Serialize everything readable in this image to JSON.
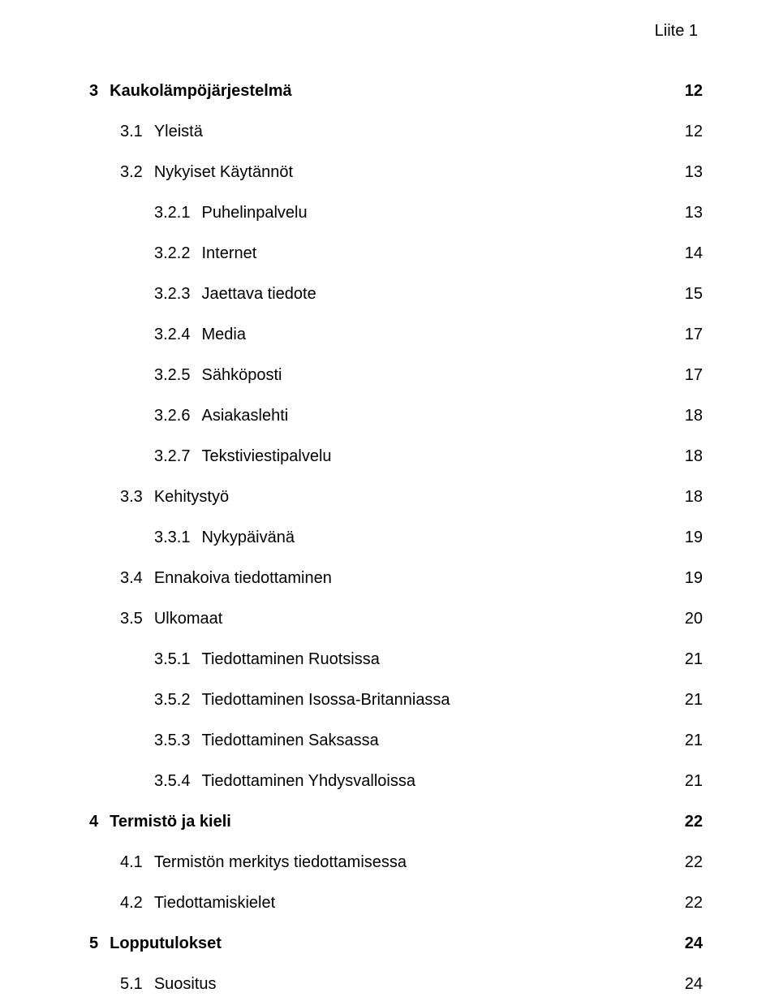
{
  "header_annotation": "Liite 1",
  "toc": [
    {
      "level": 1,
      "num": "3",
      "title": "Kaukolämpöjärjestelmä",
      "page": "12",
      "bold": true
    },
    {
      "level": 2,
      "num": "3.1",
      "title": "Yleistä",
      "page": "12",
      "bold": false
    },
    {
      "level": 2,
      "num": "3.2",
      "title": "Nykyiset Käytännöt",
      "page": "13",
      "bold": false
    },
    {
      "level": 3,
      "num": "3.2.1",
      "title": "Puhelinpalvelu",
      "page": "13",
      "bold": false
    },
    {
      "level": 3,
      "num": "3.2.2",
      "title": "Internet",
      "page": "14",
      "bold": false
    },
    {
      "level": 3,
      "num": "3.2.3",
      "title": "Jaettava tiedote",
      "page": "15",
      "bold": false
    },
    {
      "level": 3,
      "num": "3.2.4",
      "title": "Media",
      "page": "17",
      "bold": false
    },
    {
      "level": 3,
      "num": "3.2.5",
      "title": "Sähköposti",
      "page": "17",
      "bold": false
    },
    {
      "level": 3,
      "num": "3.2.6",
      "title": "Asiakaslehti",
      "page": "18",
      "bold": false
    },
    {
      "level": 3,
      "num": "3.2.7",
      "title": "Tekstiviestipalvelu",
      "page": "18",
      "bold": false
    },
    {
      "level": 2,
      "num": "3.3",
      "title": "Kehitystyö",
      "page": "18",
      "bold": false
    },
    {
      "level": 3,
      "num": "3.3.1",
      "title": "Nykypäivänä",
      "page": "19",
      "bold": false
    },
    {
      "level": 2,
      "num": "3.4",
      "title": "Ennakoiva tiedottaminen",
      "page": "19",
      "bold": false
    },
    {
      "level": 2,
      "num": "3.5",
      "title": "Ulkomaat",
      "page": "20",
      "bold": false
    },
    {
      "level": 3,
      "num": "3.5.1",
      "title": "Tiedottaminen Ruotsissa",
      "page": "21",
      "bold": false
    },
    {
      "level": 3,
      "num": "3.5.2",
      "title": "Tiedottaminen Isossa-Britanniassa",
      "page": "21",
      "bold": false
    },
    {
      "level": 3,
      "num": "3.5.3",
      "title": "Tiedottaminen Saksassa",
      "page": "21",
      "bold": false
    },
    {
      "level": 3,
      "num": "3.5.4",
      "title": "Tiedottaminen Yhdysvalloissa",
      "page": "21",
      "bold": false
    },
    {
      "level": 1,
      "num": "4",
      "title": "Termistö ja kieli",
      "page": "22",
      "bold": true
    },
    {
      "level": 2,
      "num": "4.1",
      "title": "Termistön merkitys tiedottamisessa",
      "page": "22",
      "bold": false
    },
    {
      "level": 2,
      "num": "4.2",
      "title": "Tiedottamiskielet",
      "page": "22",
      "bold": false
    },
    {
      "level": 1,
      "num": "5",
      "title": "Lopputulokset",
      "page": "24",
      "bold": true
    },
    {
      "level": 2,
      "num": "5.1",
      "title": "Suositus",
      "page": "24",
      "bold": false
    }
  ]
}
